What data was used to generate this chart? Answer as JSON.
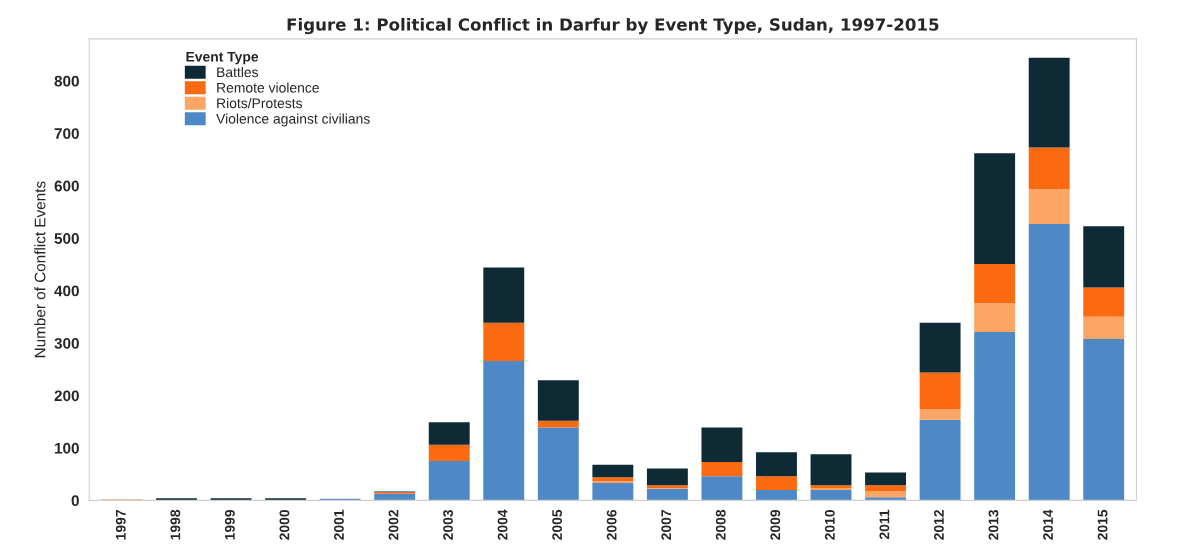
{
  "chart_data": {
    "type": "bar",
    "title": "Figure 1: Political Conflict in Darfur by Event Type, Sudan, 1997-2015",
    "ylabel": "Number of Conflict Events",
    "legend_title": "Event Type",
    "categories": [
      "1997",
      "1998",
      "1999",
      "2000",
      "2001",
      "2002",
      "2003",
      "2004",
      "2005",
      "2006",
      "2007",
      "2008",
      "2009",
      "2010",
      "2011",
      "2012",
      "2013",
      "2014",
      "2015"
    ],
    "stacked": true,
    "series": [
      {
        "name": "Violence against civilians",
        "color": "#4e88c7",
        "values": [
          0,
          0,
          0,
          0,
          3,
          13,
          75,
          266,
          139,
          33,
          22,
          46,
          20,
          20,
          6,
          154,
          321,
          527,
          308
        ]
      },
      {
        "name": "Riots/Protests",
        "color": "#fca565",
        "values": [
          2,
          0,
          0,
          0,
          0,
          0,
          0,
          0,
          0,
          4,
          1,
          0,
          0,
          3,
          12,
          20,
          55,
          67,
          42
        ]
      },
      {
        "name": "Remote violence",
        "color": "#fb6a10",
        "values": [
          0,
          0,
          null,
          null,
          0,
          3,
          31,
          73,
          13,
          7,
          6,
          27,
          26,
          6,
          11,
          70,
          75,
          79,
          56
        ]
      },
      {
        "name": "Battles",
        "color": "#0d2a35",
        "values": [
          0,
          4,
          4,
          4,
          null,
          1,
          43,
          105,
          77,
          24,
          32,
          66,
          46,
          59,
          24,
          95,
          211,
          171,
          117
        ]
      }
    ],
    "ylim": [
      0,
      880
    ],
    "yticks": [
      0,
      100,
      200,
      300,
      400,
      500,
      600,
      700,
      800
    ],
    "grid": false,
    "legend": "top left"
  }
}
